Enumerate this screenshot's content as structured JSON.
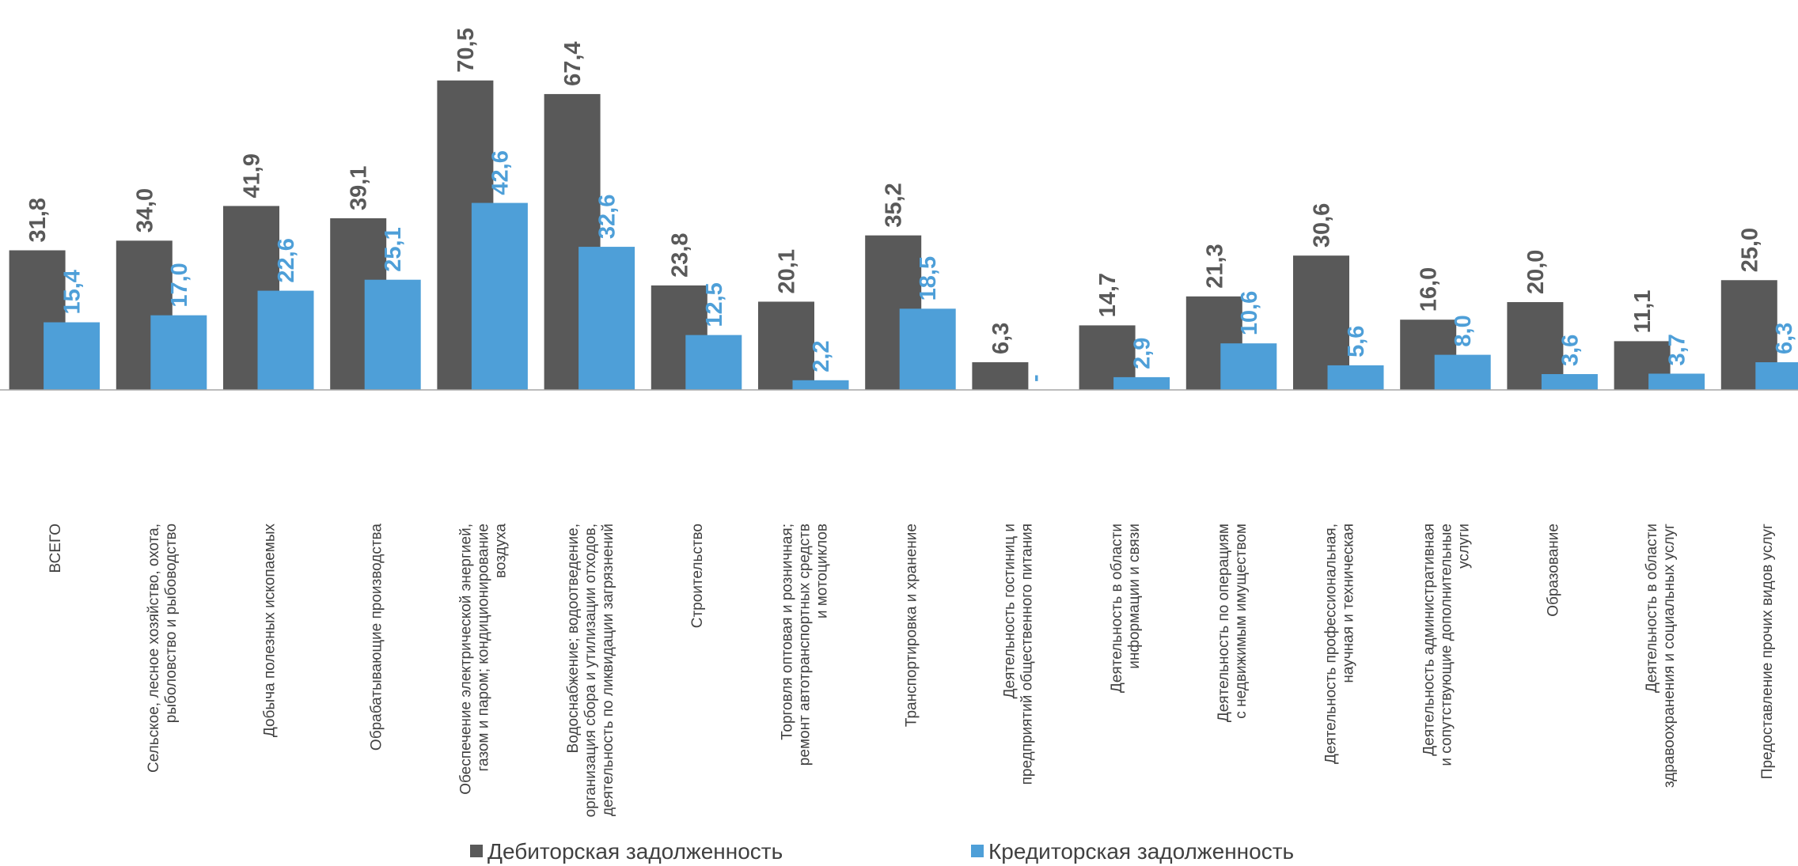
{
  "chart_data": {
    "type": "bar",
    "categories": [
      "ВСЕГО",
      "Сельское, лесное хозяйство, охота,\nрыболовство и  рыбоводство",
      "Добыча полезных ископаемых",
      "Обрабатывающие производства",
      "Обеспечение электрической энергией,\nгазом и паром; кондиционирование\nвоздуха",
      "Водоснабжение; водоотведение,\nорганизация сбора и утилизации отходов,\nдеятельность по ликвидации загрязнений",
      "Строительство",
      "Торговля оптовая и розничная;\nремонт автотранспортных средств\nи мотоциклов",
      "Транспортировка и хранение",
      "Деятельность гостиниц и\nпредприятий общественного питания",
      "Деятельность в области\nинформации и связи",
      "Деятельность по операциям\nс недвижимым имуществом",
      "Деятельность профессиональная,\nнаучная и техническая",
      "Деятельность административная\nи сопутствующие дополнительные\nуслуги",
      "Образование",
      "Деятельность в области\nздравоохранения и социальных услуг",
      "Предоставление прочих видов услуг"
    ],
    "series": [
      {
        "name": "Дебиторская задолженность",
        "color": "#595959",
        "values": [
          31.8,
          34.0,
          41.9,
          39.1,
          70.5,
          67.4,
          23.8,
          20.1,
          35.2,
          6.3,
          14.7,
          21.3,
          30.6,
          16.0,
          20.0,
          11.1,
          25.0
        ],
        "value_labels": [
          "31,8",
          "34,0",
          "41,9",
          "39,1",
          "70,5",
          "67,4",
          "23,8",
          "20,1",
          "35,2",
          "6,3",
          "14,7",
          "21,3",
          "30,6",
          "16,0",
          "20,0",
          "11,1",
          "25,0"
        ]
      },
      {
        "name": "Кредиторская задолженность",
        "color": "#4e9fd8",
        "values": [
          15.4,
          17.0,
          22.6,
          25.1,
          42.6,
          32.6,
          12.5,
          2.2,
          18.5,
          null,
          2.9,
          10.6,
          5.6,
          8.0,
          3.6,
          3.7,
          6.3
        ],
        "value_labels": [
          "15,4",
          "17,0",
          "22,6",
          "25,1",
          "42,6",
          "32,6",
          "12,5",
          "2,2",
          "18,5",
          "-",
          "2,9",
          "10,6",
          "5,6",
          "8,0",
          "3,6",
          "3,7",
          "6,3"
        ]
      }
    ],
    "ylim": [
      0,
      80
    ],
    "legend": "bottom"
  }
}
